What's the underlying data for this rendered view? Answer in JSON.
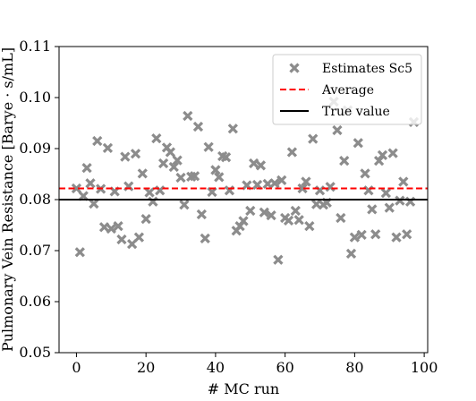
{
  "chart_data": {
    "type": "scatter",
    "xlabel": "# MC run",
    "ylabel": "Pulmonary Vein Resistance [Barye · s/mL]",
    "xlim": [
      -5,
      101
    ],
    "ylim": [
      0.05,
      0.11
    ],
    "x_ticks": [
      0,
      20,
      40,
      60,
      80,
      100
    ],
    "y_ticks": [
      0.05,
      0.06,
      0.07,
      0.08,
      0.09,
      0.1,
      0.11
    ],
    "x_tick_labels": [
      "0",
      "20",
      "40",
      "60",
      "80",
      "100"
    ],
    "y_tick_labels": [
      "0.05",
      "0.06",
      "0.07",
      "0.08",
      "0.09",
      "0.10",
      "0.11"
    ],
    "legend_position": "top-right",
    "grid": false,
    "series": [
      {
        "name": "Estimates Sc5",
        "marker": "x",
        "color": "#8c8c8c",
        "points": [
          [
            0,
            0.0822
          ],
          [
            1,
            0.0697
          ],
          [
            2,
            0.0807
          ],
          [
            3,
            0.0862
          ],
          [
            4,
            0.0832
          ],
          [
            5,
            0.0792
          ],
          [
            6,
            0.0915
          ],
          [
            7,
            0.0821
          ],
          [
            8,
            0.0746
          ],
          [
            9,
            0.0901
          ],
          [
            10,
            0.0743
          ],
          [
            11,
            0.0816
          ],
          [
            12,
            0.0748
          ],
          [
            13,
            0.0722
          ],
          [
            14,
            0.0884
          ],
          [
            15,
            0.0826
          ],
          [
            16,
            0.0713
          ],
          [
            17,
            0.089
          ],
          [
            18,
            0.0726
          ],
          [
            19,
            0.0851
          ],
          [
            20,
            0.0762
          ],
          [
            21,
            0.0814
          ],
          [
            22,
            0.0796
          ],
          [
            23,
            0.092
          ],
          [
            24,
            0.0818
          ],
          [
            25,
            0.0871
          ],
          [
            26,
            0.0902
          ],
          [
            27,
            0.0893
          ],
          [
            28,
            0.0864
          ],
          [
            29,
            0.0877
          ],
          [
            30,
            0.0843
          ],
          [
            31,
            0.079
          ],
          [
            32,
            0.0964
          ],
          [
            33,
            0.0845
          ],
          [
            34,
            0.0846
          ],
          [
            35,
            0.0943
          ],
          [
            36,
            0.0771
          ],
          [
            37,
            0.0724
          ],
          [
            38,
            0.0903
          ],
          [
            39,
            0.0815
          ],
          [
            40,
            0.0858
          ],
          [
            41,
            0.0844
          ],
          [
            42,
            0.0885
          ],
          [
            43,
            0.0883
          ],
          [
            44,
            0.0818
          ],
          [
            45,
            0.0939
          ],
          [
            46,
            0.0739
          ],
          [
            47,
            0.0748
          ],
          [
            48,
            0.0758
          ],
          [
            49,
            0.0828
          ],
          [
            50,
            0.0778
          ],
          [
            51,
            0.0871
          ],
          [
            52,
            0.0829
          ],
          [
            53,
            0.0867
          ],
          [
            54,
            0.0775
          ],
          [
            55,
            0.0831
          ],
          [
            56,
            0.0769
          ],
          [
            57,
            0.0832
          ],
          [
            58,
            0.0682
          ],
          [
            59,
            0.0838
          ],
          [
            60,
            0.0764
          ],
          [
            61,
            0.0759
          ],
          [
            62,
            0.0893
          ],
          [
            63,
            0.0778
          ],
          [
            64,
            0.076
          ],
          [
            65,
            0.0822
          ],
          [
            66,
            0.0835
          ],
          [
            67,
            0.0748
          ],
          [
            68,
            0.0919
          ],
          [
            69,
            0.0791
          ],
          [
            70,
            0.0818
          ],
          [
            71,
            0.079
          ],
          [
            72,
            0.0794
          ],
          [
            73,
            0.0825
          ],
          [
            74,
            0.0992
          ],
          [
            75,
            0.0936
          ],
          [
            76,
            0.0764
          ],
          [
            77,
            0.0876
          ],
          [
            78,
            0.0975
          ],
          [
            79,
            0.0694
          ],
          [
            80,
            0.0726
          ],
          [
            81,
            0.0911
          ],
          [
            82,
            0.0731
          ],
          [
            83,
            0.0851
          ],
          [
            84,
            0.0818
          ],
          [
            85,
            0.0781
          ],
          [
            86,
            0.0732
          ],
          [
            87,
            0.0876
          ],
          [
            88,
            0.0887
          ],
          [
            89,
            0.0813
          ],
          [
            90,
            0.0784
          ],
          [
            91,
            0.0891
          ],
          [
            92,
            0.0726
          ],
          [
            93,
            0.0798
          ],
          [
            94,
            0.0835
          ],
          [
            95,
            0.0732
          ],
          [
            96,
            0.0796
          ],
          [
            97,
            0.0952
          ]
        ]
      },
      {
        "name": "Average",
        "kind": "hline",
        "y": 0.0822,
        "style": "dashed",
        "color": "#ff0000"
      },
      {
        "name": "True value",
        "kind": "hline",
        "y": 0.08,
        "style": "solid",
        "color": "#000000"
      }
    ]
  }
}
